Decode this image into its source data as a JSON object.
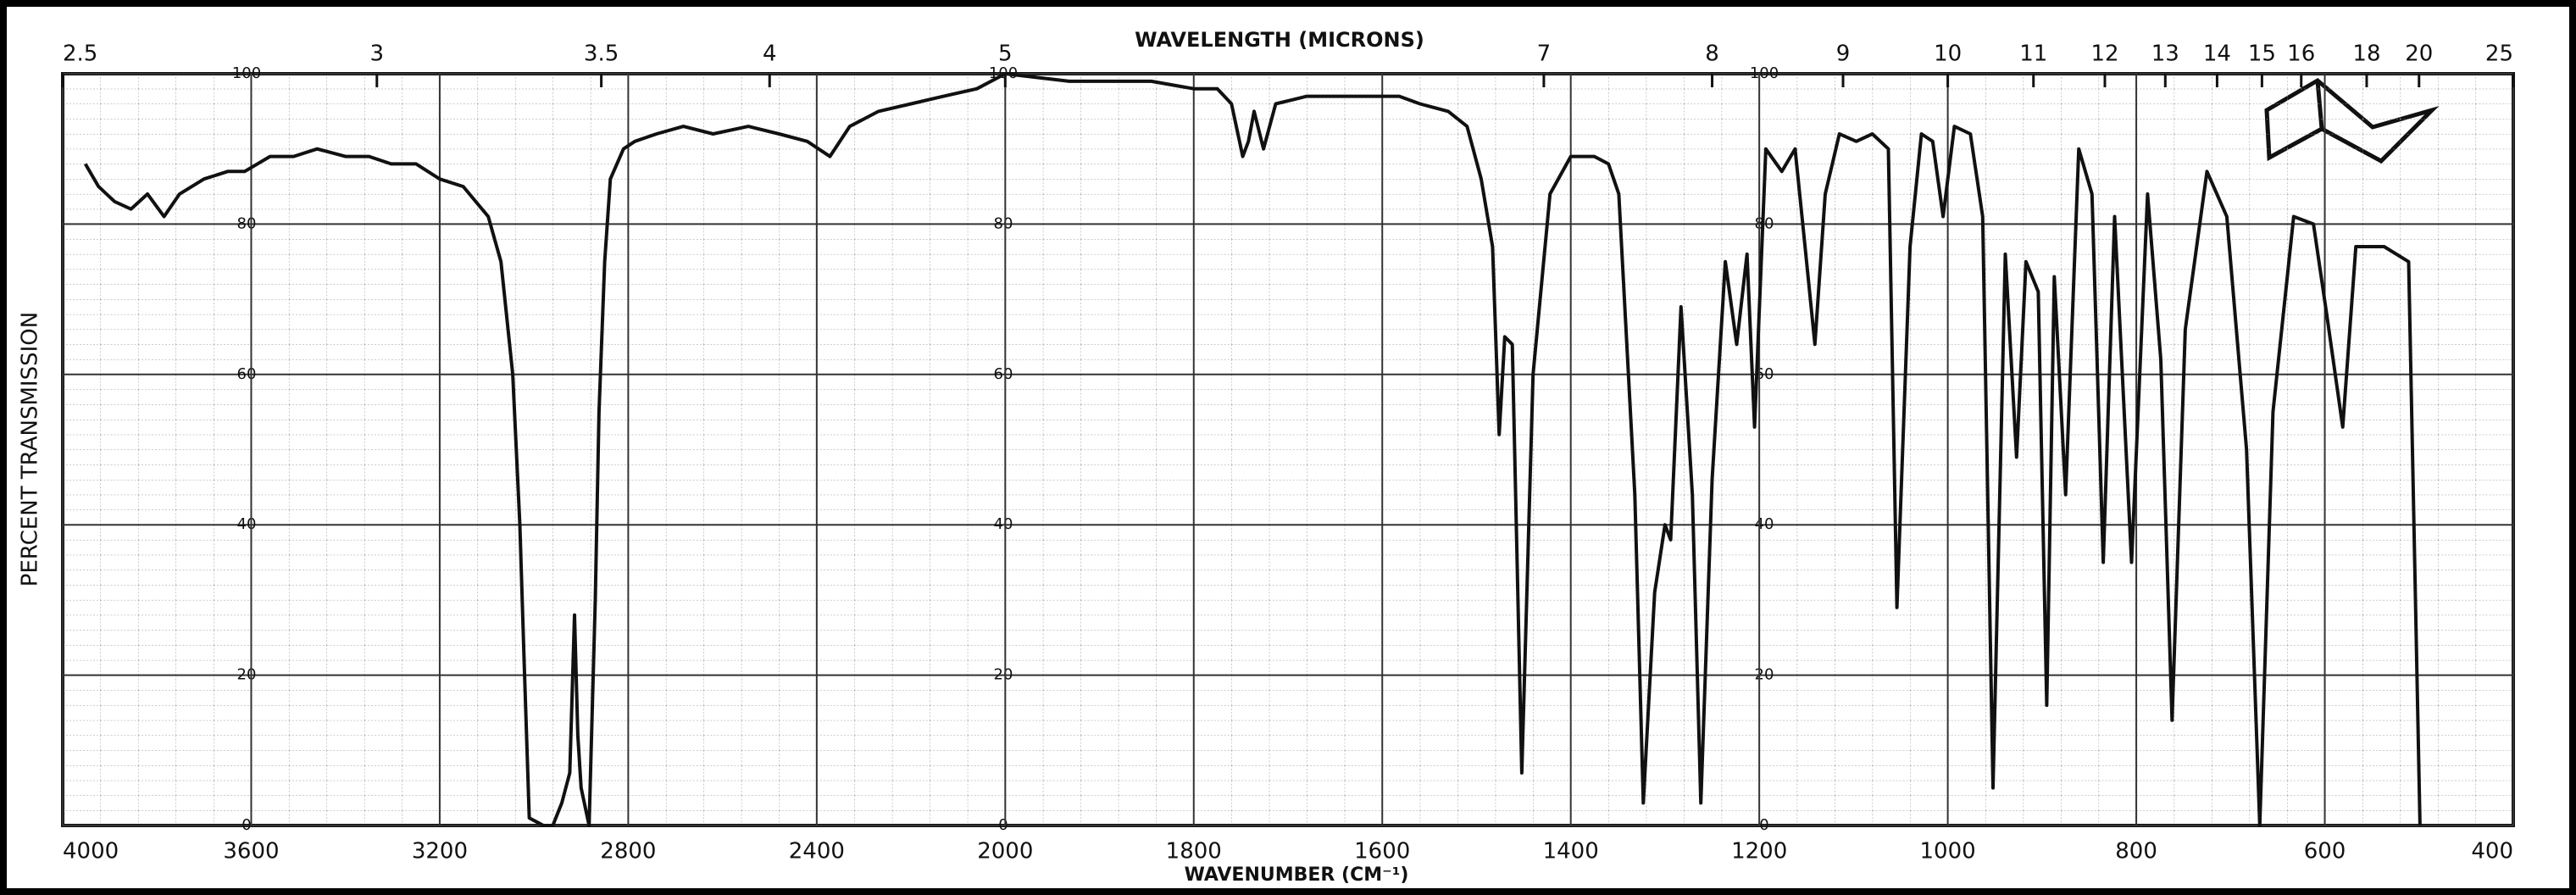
{
  "chart_data": {
    "type": "line",
    "title": "WAVELENGTH (MICRONS)",
    "x_label": "WAVENUMBER (CM⁻¹)",
    "y_label": "PERCENT TRANSMISSION",
    "x": [
      3952,
      3924,
      3890,
      3855,
      3820,
      3785,
      3752,
      3700,
      3650,
      3614,
      3560,
      3510,
      3460,
      3400,
      3350,
      3303,
      3250,
      3200,
      3150,
      3097,
      3070,
      3045,
      3030,
      3021,
      3010,
      2980,
      2960,
      2941,
      2924,
      2914,
      2907,
      2900,
      2883,
      2870,
      2862,
      2850,
      2838,
      2810,
      2786,
      2740,
      2683,
      2620,
      2545,
      2480,
      2420,
      2372,
      2330,
      2269,
      2200,
      2131,
      2060,
      2000,
      1932,
      1880,
      1845,
      1800,
      1775,
      1760,
      1748,
      1742,
      1736,
      1726,
      1713,
      1680,
      1640,
      1600,
      1582,
      1560,
      1530,
      1510,
      1495,
      1483,
      1476,
      1470,
      1462,
      1452,
      1440,
      1422,
      1400,
      1375,
      1360,
      1349,
      1332,
      1323,
      1311,
      1300,
      1294,
      1283,
      1271,
      1262,
      1250,
      1236,
      1224,
      1213,
      1205,
      1193,
      1176,
      1162,
      1153,
      1141,
      1130,
      1115,
      1097,
      1080,
      1063,
      1054,
      1040,
      1028,
      1016,
      1005,
      993,
      976,
      963,
      952,
      939,
      927,
      917,
      904,
      895,
      887,
      875,
      861,
      847,
      835,
      823,
      805,
      788,
      774,
      762,
      748,
      725,
      704,
      683,
      669,
      655,
      633,
      612,
      598,
      581,
      567,
      537,
      511,
      499
    ],
    "series": [
      {
        "color": "#111111",
        "values": [
          88,
          85,
          83,
          82,
          84,
          81,
          84,
          86,
          87,
          87,
          89,
          89,
          90,
          89,
          89,
          88,
          88,
          86,
          85,
          81,
          75,
          60,
          40,
          22,
          1,
          0,
          0,
          3,
          7,
          28,
          12,
          5,
          0,
          30,
          55,
          75,
          86,
          90,
          91,
          92,
          93,
          92,
          93,
          92,
          91,
          89,
          93,
          95,
          96,
          97,
          98,
          100,
          99,
          99,
          99,
          98,
          98,
          96,
          89,
          91,
          95,
          90,
          96,
          97,
          97,
          97,
          97,
          96,
          95,
          93,
          86,
          77,
          52,
          65,
          64,
          7,
          60,
          84,
          89,
          89,
          88,
          84,
          44,
          3,
          31,
          40,
          38,
          69,
          44,
          3,
          46,
          75,
          64,
          76,
          53,
          90,
          87,
          90,
          79,
          64,
          84,
          92,
          91,
          92,
          90,
          29,
          77,
          92,
          91,
          81,
          93,
          92,
          81,
          5,
          76,
          49,
          75,
          71,
          16,
          73,
          44,
          90,
          84,
          35,
          81,
          35,
          84,
          62,
          14,
          66,
          87,
          81,
          50,
          0,
          55,
          81,
          80,
          68,
          53,
          77,
          77,
          75,
          0
        ]
      }
    ],
    "xlim": [
      4000,
      400
    ],
    "xticks": [
      4000,
      3600,
      3200,
      2800,
      2400,
      2000,
      1800,
      1600,
      1400,
      1200,
      1000,
      800,
      600,
      400
    ],
    "x2ticks": [
      2.5,
      3,
      3.5,
      4,
      5,
      7,
      8,
      9,
      10,
      11,
      12,
      13,
      14,
      15,
      16,
      18,
      20,
      25
    ],
    "ylim": [
      0,
      100
    ],
    "yticks": [
      0,
      20,
      40,
      60,
      80,
      100
    ],
    "grid": true
  }
}
